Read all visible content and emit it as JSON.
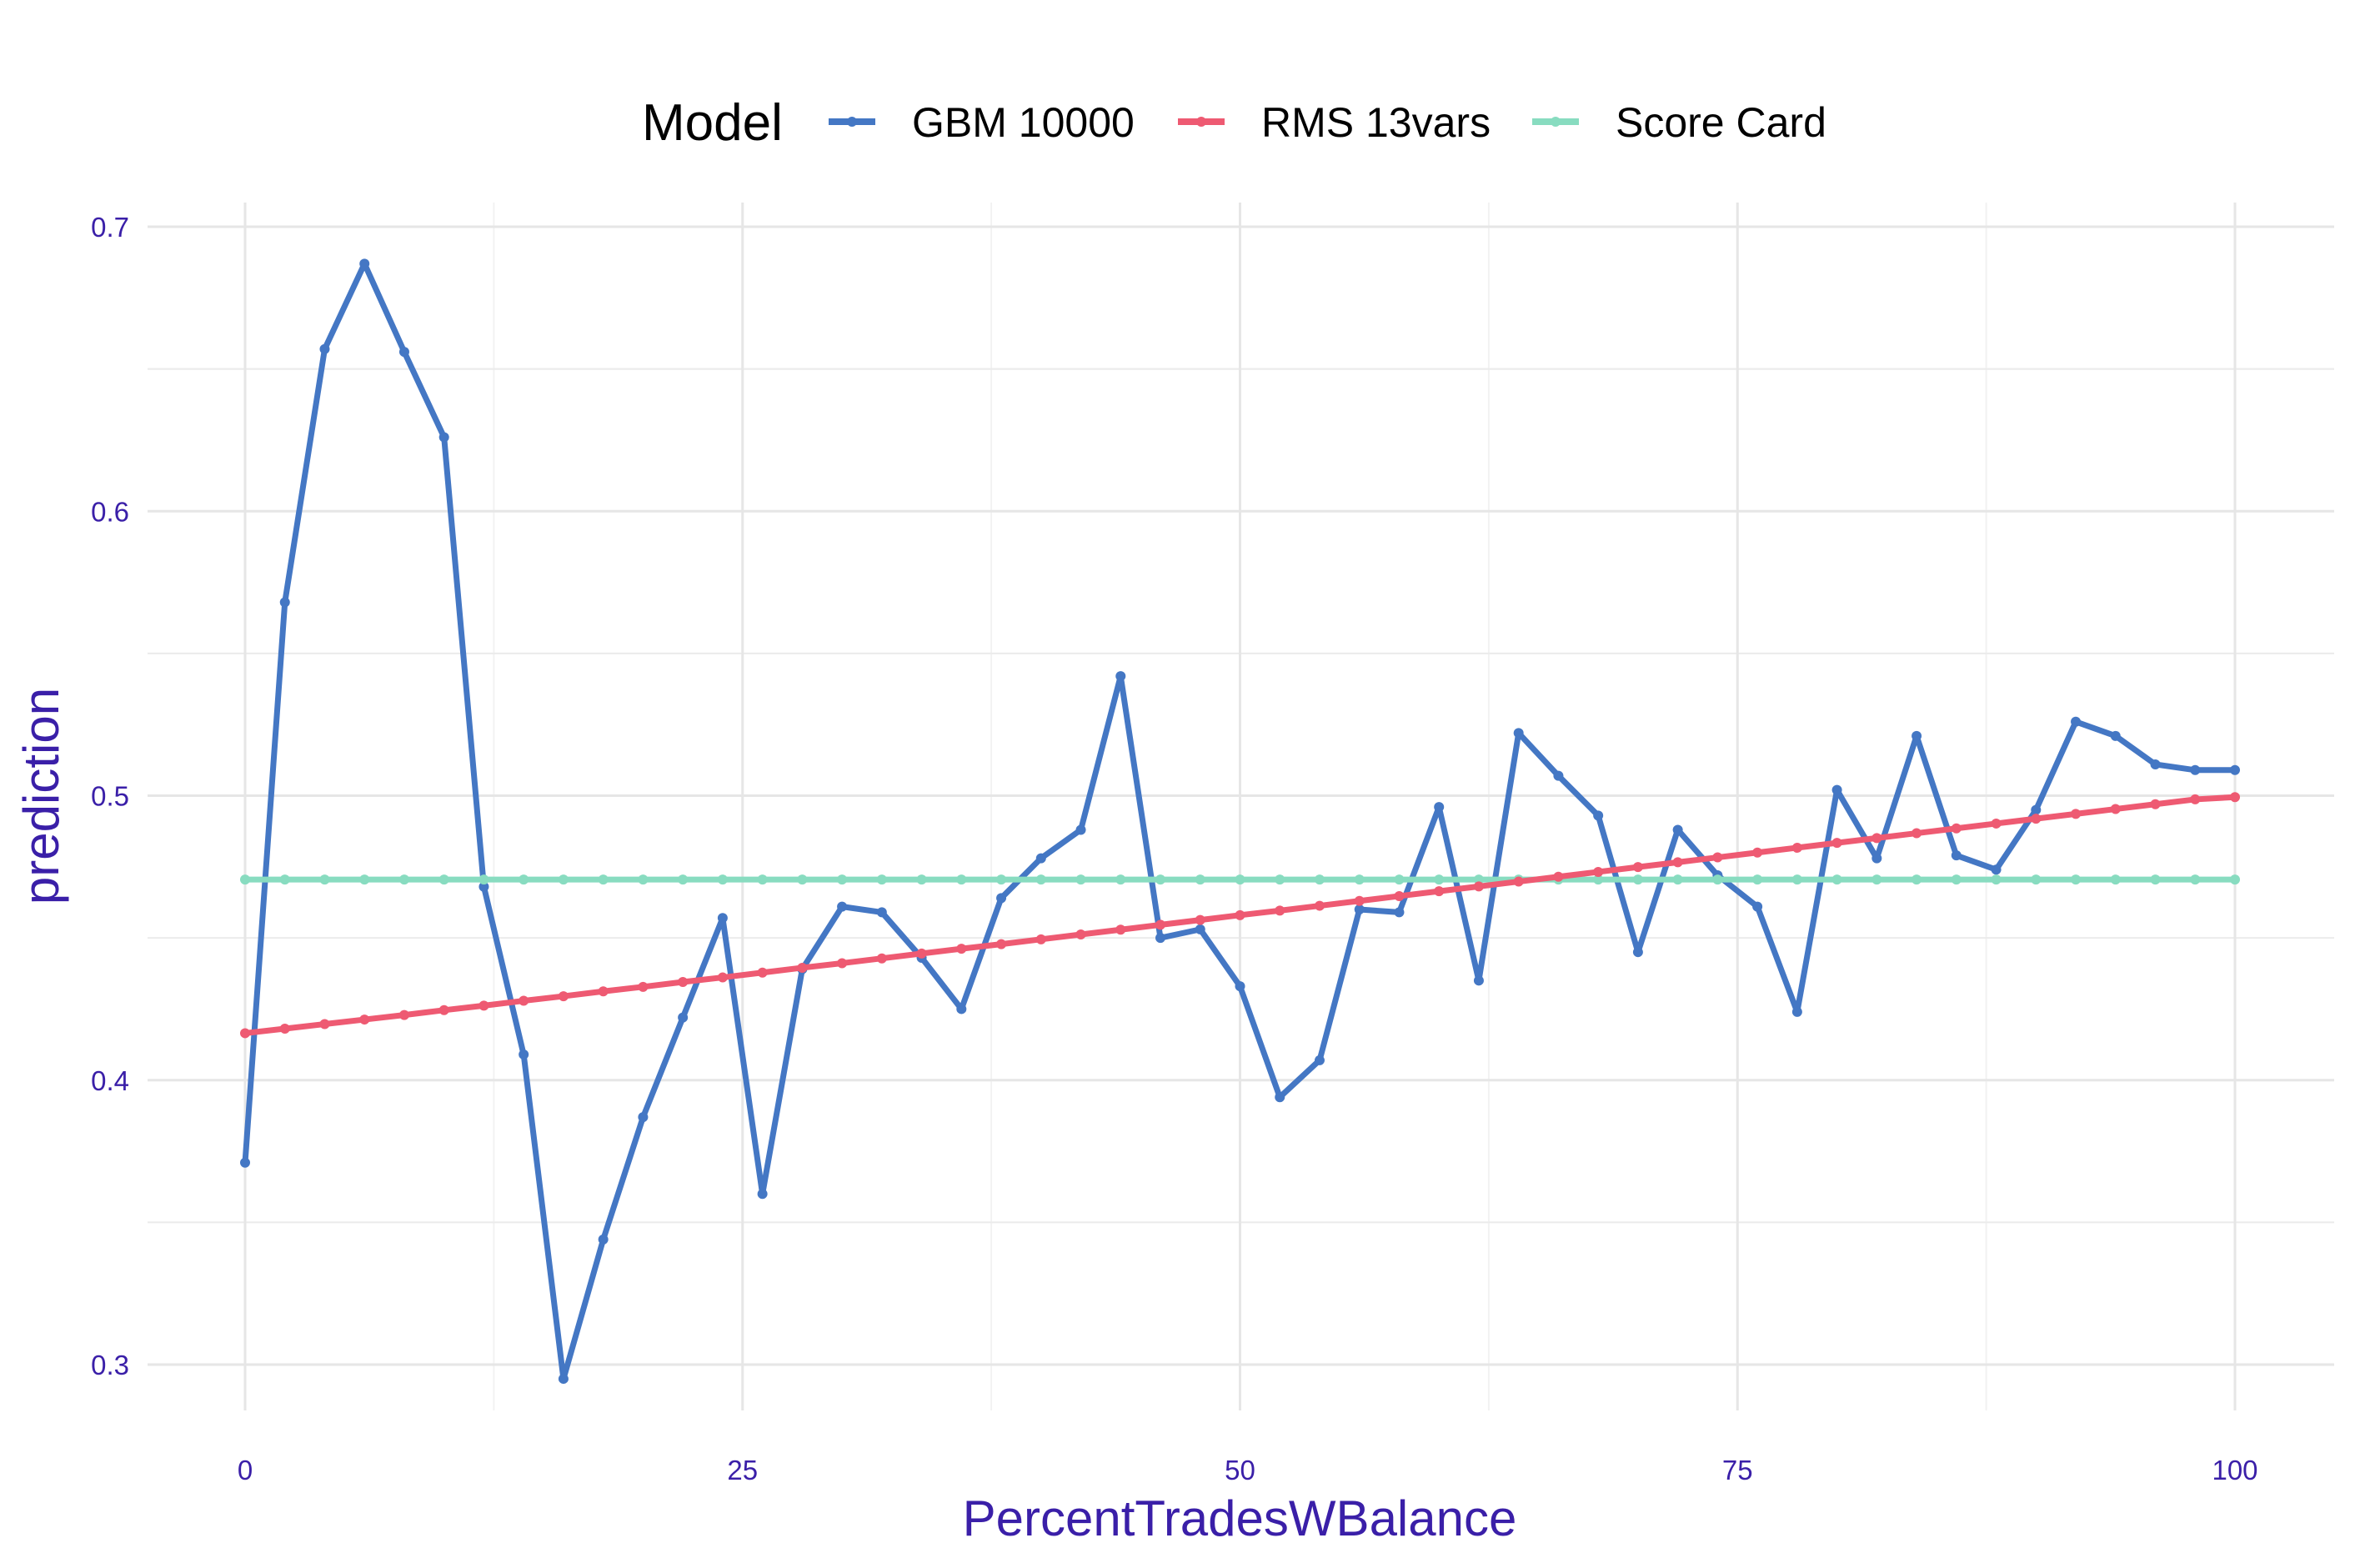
{
  "chart_data": {
    "type": "line",
    "title": "",
    "xlabel": "PercentTradesWBalance",
    "ylabel": "prediction",
    "xlim": [
      -2.5,
      105
    ],
    "ylim": [
      0.28,
      0.71
    ],
    "xticks": [
      0,
      25,
      50,
      75,
      100
    ],
    "xtick_labels": [
      "0",
      "25",
      "50",
      "75",
      "100"
    ],
    "yticks": [
      0.3,
      0.4,
      0.5,
      0.6,
      0.7
    ],
    "ytick_labels": [
      "0.3",
      "0.4",
      "0.5",
      "0.6",
      "0.7"
    ],
    "grid": true,
    "legend": {
      "title": "Model",
      "position": "top"
    },
    "x": [
      0,
      2,
      4,
      6,
      8,
      10,
      12,
      14,
      16,
      18,
      20,
      22,
      24,
      26,
      28,
      30,
      32,
      34,
      36,
      38,
      40,
      42,
      44,
      46,
      48,
      50,
      52,
      54,
      56,
      58,
      60,
      62,
      64,
      66,
      68,
      70,
      72,
      74,
      76,
      78,
      80,
      82,
      84,
      86,
      88,
      90,
      92,
      94,
      96,
      98,
      100
    ],
    "series": [
      {
        "name": "GBM 10000",
        "color": "#4477c4",
        "values": [
          0.371,
          0.568,
          0.657,
          0.687,
          0.656,
          0.626,
          0.468,
          0.409,
          0.295,
          0.344,
          0.387,
          0.422,
          0.457,
          0.36,
          0.439,
          0.461,
          0.459,
          0.443,
          0.425,
          0.464,
          0.478,
          0.488,
          0.542,
          0.45,
          0.453,
          0.433,
          0.394,
          0.407,
          0.46,
          0.459,
          0.496,
          0.435,
          0.522,
          0.507,
          0.493,
          0.445,
          0.488,
          0.472,
          0.461,
          0.424,
          0.502,
          0.478,
          0.521,
          0.479,
          0.474,
          0.495,
          0.526,
          0.521,
          0.511,
          0.509,
          0.509
        ]
      },
      {
        "name": "RMS 13vars",
        "color": "#ee5a72",
        "values": [
          0.4165,
          0.4181,
          0.4197,
          0.4213,
          0.4229,
          0.4246,
          0.4262,
          0.4279,
          0.4295,
          0.4312,
          0.4328,
          0.4345,
          0.4361,
          0.4378,
          0.4395,
          0.4411,
          0.4428,
          0.4445,
          0.4462,
          0.4478,
          0.4495,
          0.4512,
          0.4529,
          0.4546,
          0.4563,
          0.458,
          0.4596,
          0.4613,
          0.463,
          0.4647,
          0.4664,
          0.4681,
          0.4698,
          0.4715,
          0.4732,
          0.4749,
          0.4766,
          0.4783,
          0.48,
          0.4817,
          0.4834,
          0.4851,
          0.4868,
          0.4885,
          0.4902,
          0.4919,
          0.4936,
          0.4953,
          0.497,
          0.4987,
          0.4995
        ]
      },
      {
        "name": "Score Card",
        "color": "#88dcc0",
        "values": [
          0.4705,
          0.4705,
          0.4705,
          0.4705,
          0.4705,
          0.4705,
          0.4705,
          0.4705,
          0.4705,
          0.4705,
          0.4705,
          0.4705,
          0.4705,
          0.4705,
          0.4705,
          0.4705,
          0.4705,
          0.4705,
          0.4705,
          0.4705,
          0.4705,
          0.4705,
          0.4705,
          0.4705,
          0.4705,
          0.4705,
          0.4705,
          0.4705,
          0.4705,
          0.4705,
          0.4705,
          0.4705,
          0.4705,
          0.4705,
          0.4705,
          0.4705,
          0.4705,
          0.4705,
          0.4705,
          0.4705,
          0.4705,
          0.4705,
          0.4705,
          0.4705,
          0.4705,
          0.4705,
          0.4705,
          0.4705,
          0.4705,
          0.4705,
          0.4705
        ]
      }
    ]
  }
}
